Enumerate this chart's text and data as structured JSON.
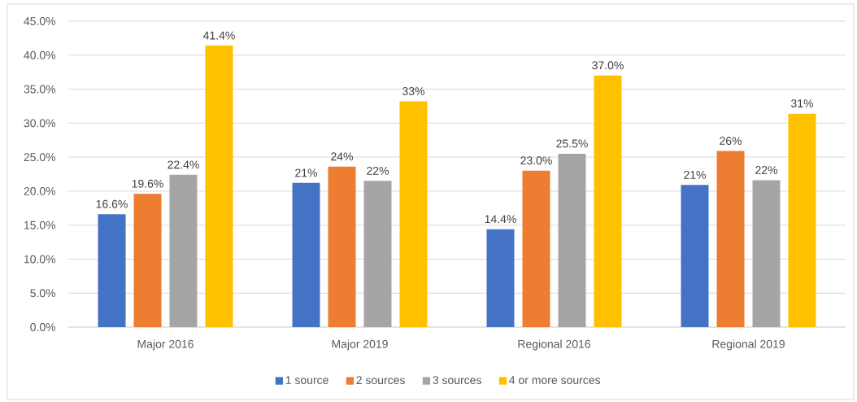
{
  "chart_data": {
    "type": "bar",
    "categories": [
      "Major 2016",
      "Major 2019",
      "Regional 2016",
      "Regional 2019"
    ],
    "series": [
      {
        "name": "1 source",
        "color": "#4472c4",
        "values": [
          16.6,
          21.2,
          14.4,
          20.9
        ],
        "value_labels": [
          "16.6%",
          "21%",
          "14.4%",
          "21%"
        ]
      },
      {
        "name": "2 sources",
        "color": "#ed7d31",
        "values": [
          19.6,
          23.6,
          23.0,
          25.9
        ],
        "value_labels": [
          "19.6%",
          "24%",
          "23.0%",
          "26%"
        ]
      },
      {
        "name": "3 sources",
        "color": "#a5a5a5",
        "values": [
          22.4,
          21.5,
          25.5,
          21.6
        ],
        "value_labels": [
          "22.4%",
          "22%",
          "25.5%",
          "22%"
        ]
      },
      {
        "name": "4 or more sources",
        "color": "#ffc000",
        "values": [
          41.4,
          33.2,
          37.0,
          31.4
        ],
        "value_labels": [
          "41.4%",
          "33%",
          "37.0%",
          "31%"
        ]
      }
    ],
    "ylim": [
      0,
      45
    ],
    "yticks": [
      {
        "value": 0,
        "label": "0.0%"
      },
      {
        "value": 5,
        "label": "5.0%"
      },
      {
        "value": 10,
        "label": "10.0%"
      },
      {
        "value": 15,
        "label": "15.0%"
      },
      {
        "value": 20,
        "label": "20.0%"
      },
      {
        "value": 25,
        "label": "25.0%"
      },
      {
        "value": 30,
        "label": "30.0%"
      },
      {
        "value": 35,
        "label": "35.0%"
      },
      {
        "value": 40,
        "label": "40.0%"
      },
      {
        "value": 45,
        "label": "45.0%"
      }
    ],
    "grid": "y",
    "legend": "bottom"
  }
}
